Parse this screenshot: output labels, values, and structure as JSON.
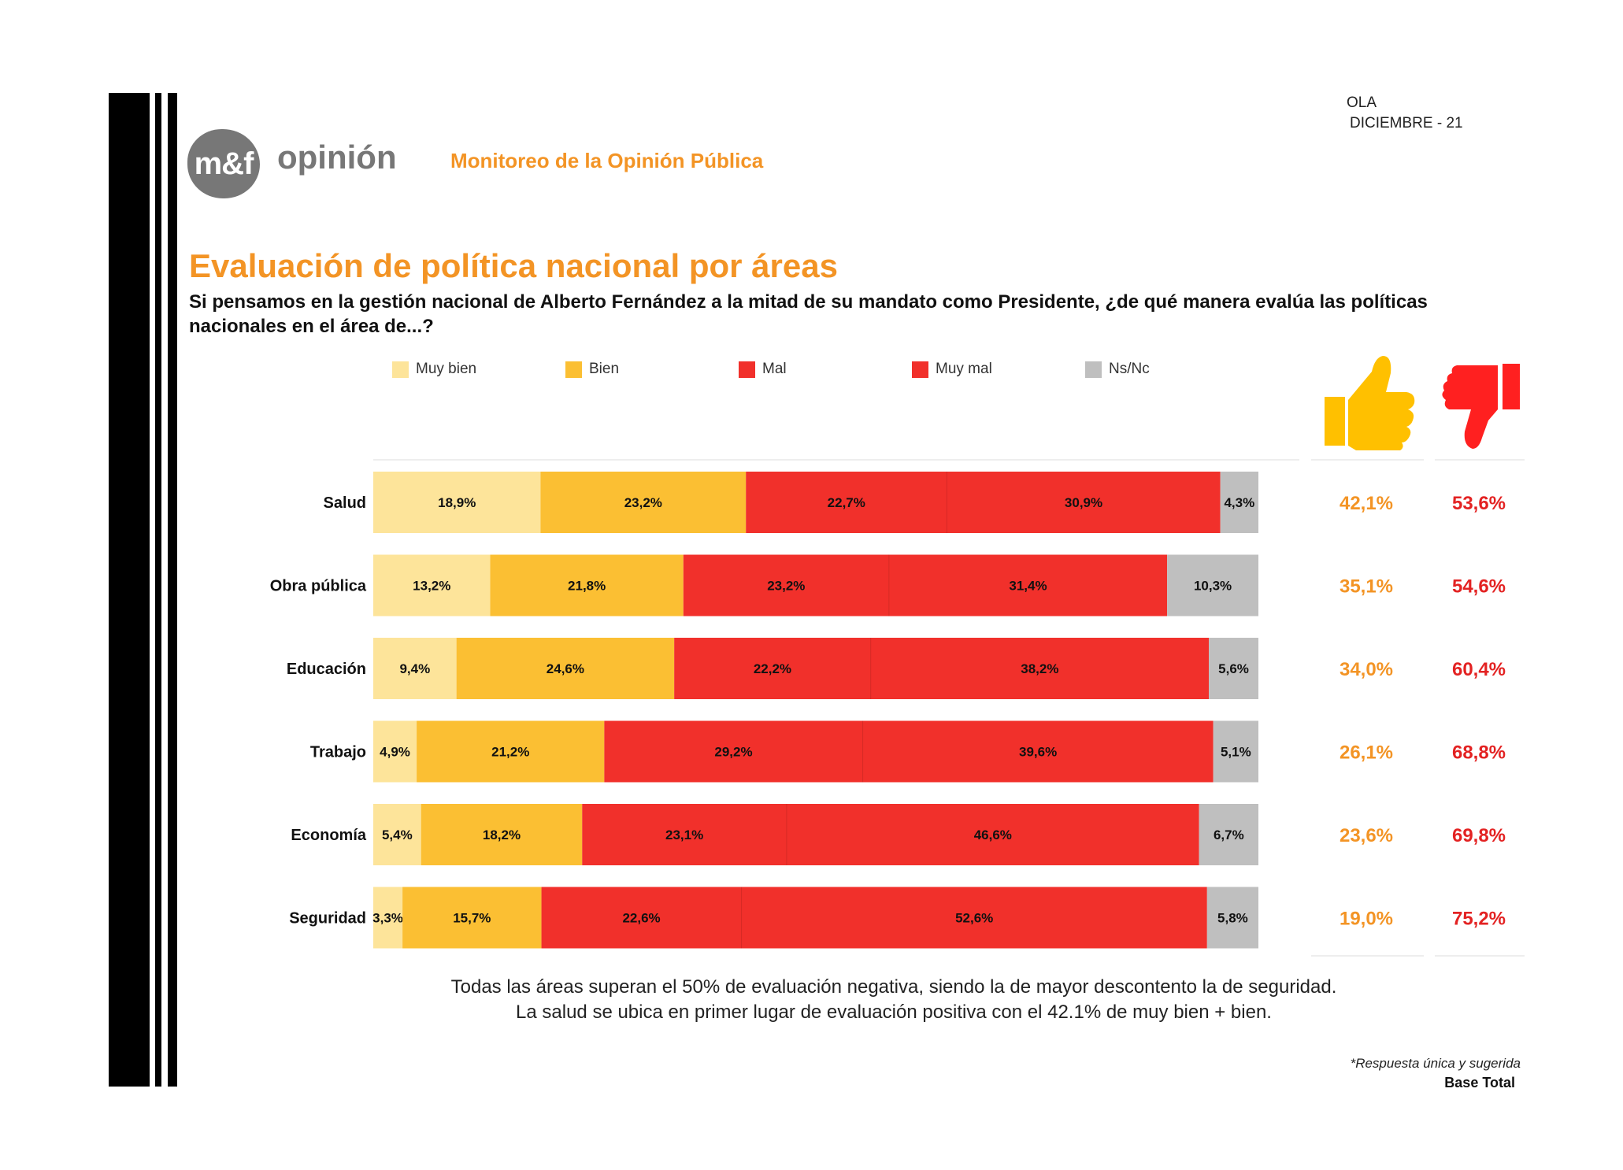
{
  "header": {
    "ola_label": "OLA",
    "ola_period": "DICIEMBRE - 21",
    "logo_mark": "m&f",
    "logo_word": "opinión",
    "section": "Monitoreo de la Opinión Pública"
  },
  "title": "Evaluación de política nacional por áreas",
  "subtitle": "Si pensamos en la gestión nacional de Alberto Fernández a la mitad de su mandato como Presidente, ¿de qué manera evalúa las políticas nacionales en el área de...?",
  "icons": {
    "positive": "thumbs-up-icon",
    "negative": "thumbs-down-icon"
  },
  "colors": {
    "muy_bien": "#FDE49A",
    "bien": "#FBBF33",
    "mal": "#F1302B",
    "muy_mal": "#F1302B",
    "ns_nc": "#BFBFBF",
    "positive": "#F39425",
    "negative": "#E32222",
    "thumbs_up": "#FFC000",
    "thumbs_down": "#FF2020"
  },
  "chart_data": {
    "type": "bar",
    "orientation": "horizontal",
    "stacked": true,
    "categories": [
      "Salud",
      "Obra pública",
      "Educación",
      "Trabajo",
      "Economía",
      "Seguridad"
    ],
    "series": [
      {
        "name": "Muy bien",
        "values": [
          18.9,
          13.2,
          9.4,
          4.9,
          5.4,
          3.3
        ],
        "labels": [
          "18,9%",
          "13,2%",
          "9,4%",
          "4,9%",
          "5,4%",
          "3,3%"
        ]
      },
      {
        "name": "Bien",
        "values": [
          23.2,
          21.8,
          24.6,
          21.2,
          18.2,
          15.7
        ],
        "labels": [
          "23,2%",
          "21,8%",
          "24,6%",
          "21,2%",
          "18,2%",
          "15,7%"
        ]
      },
      {
        "name": "Mal",
        "values": [
          22.7,
          23.2,
          22.2,
          29.2,
          23.1,
          22.6
        ],
        "labels": [
          "22,7%",
          "23,2%",
          "22,2%",
          "29,2%",
          "23,1%",
          "22,6%"
        ]
      },
      {
        "name": "Muy mal",
        "values": [
          30.9,
          31.4,
          38.2,
          39.6,
          46.6,
          52.6
        ],
        "labels": [
          "30,9%",
          "31,4%",
          "38,2%",
          "39,6%",
          "46,6%",
          "52,6%"
        ]
      },
      {
        "name": "Ns/Nc",
        "values": [
          4.3,
          10.3,
          5.6,
          5.1,
          6.7,
          5.8
        ],
        "labels": [
          "4,3%",
          "10,3%",
          "5,6%",
          "5,1%",
          "6,7%",
          "5,8%"
        ]
      }
    ],
    "positive_totals": [
      42.1,
      35.1,
      34.0,
      26.1,
      23.6,
      19.0
    ],
    "positive_labels": [
      "42,1%",
      "35,1%",
      "34,0%",
      "26,1%",
      "23,6%",
      "19,0%"
    ],
    "negative_totals": [
      53.6,
      54.6,
      60.4,
      68.8,
      69.8,
      75.2
    ],
    "negative_labels": [
      "53,6%",
      "54,6%",
      "60,4%",
      "68,8%",
      "69,8%",
      "75,2%"
    ],
    "xlim": [
      0,
      100
    ],
    "legend_position": "top"
  },
  "footnote": {
    "line1": "Todas las áreas superan el 50% de evaluación negativa, siendo la de mayor descontento la de seguridad.",
    "line2": "La salud se ubica en primer lugar de evaluación positiva con el 42.1% de muy bien + bien."
  },
  "respuesta": "*Respuesta única y sugerida",
  "base": "Base Total"
}
